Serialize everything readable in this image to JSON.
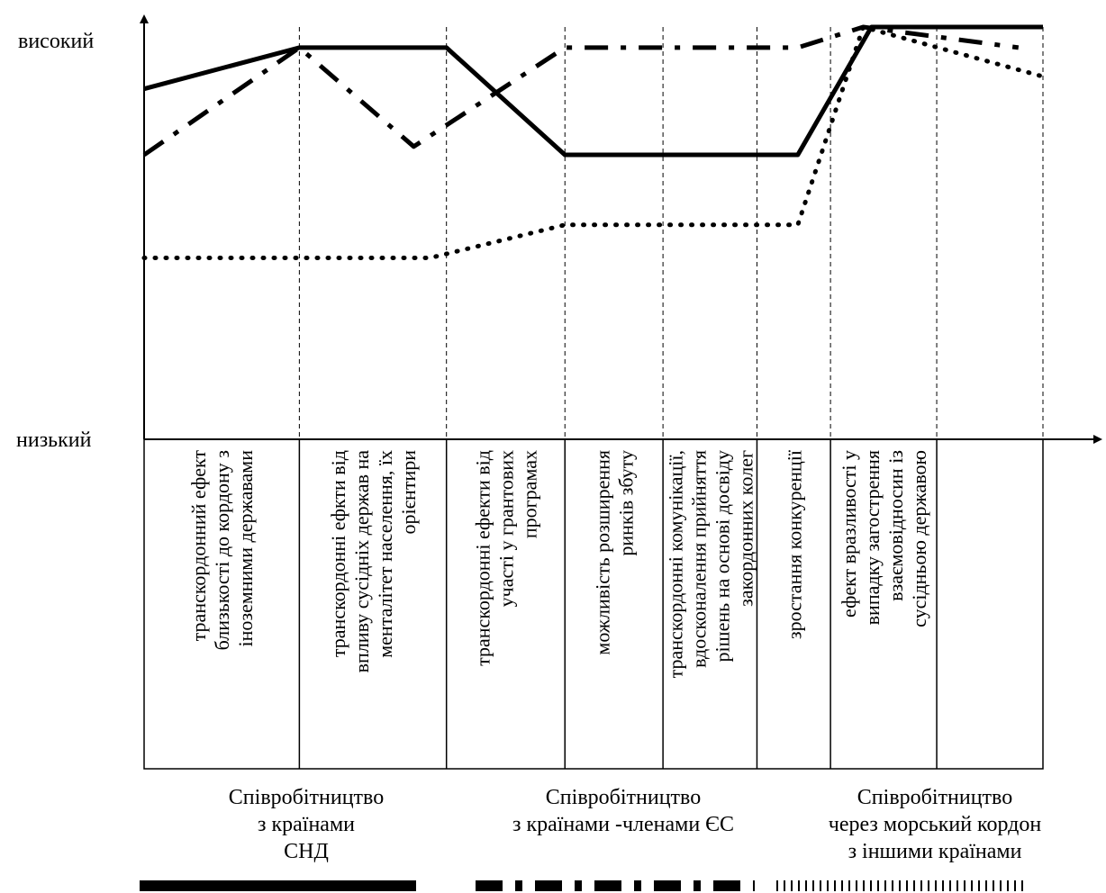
{
  "chart_data": {
    "type": "line",
    "title": "",
    "xlabel": "",
    "ylabel": "",
    "y_labels": {
      "high": "високий",
      "low": "низький"
    },
    "ylim": [
      0,
      10
    ],
    "grid": "vertical-dashed",
    "categories": [
      [
        "транскордонний ефект",
        "близькості до кордону з",
        "іноземними державами"
      ],
      [
        "транскордонні ефкти від",
        "впливу сусідніх держав на",
        "менталітет населення, їх",
        "орієнтири"
      ],
      [
        "транскордонні ефекти від",
        "участі у грантових",
        "програмах"
      ],
      [
        "можливість розширення",
        "ринків збуту"
      ],
      [
        "транскордонні комунікації,",
        "вдосконалення прийняття",
        "рішень на основі досвіду",
        "закордонних колег"
      ],
      [
        "зростання конкуренції"
      ],
      [
        "ефект вразливості у",
        "випадку загострення",
        "взаємовідносин із",
        "сусідньою державою"
      ]
    ],
    "groups": [
      [
        "Співробітництво",
        "з країнами",
        "СНД"
      ],
      [
        "Співробітництво",
        "з країнами -членами ЄС"
      ],
      [
        "Співробітництво",
        "через морський кордон",
        "з іншими країнами"
      ]
    ],
    "boundaries": [
      0,
      1.9,
      3.7,
      5.15,
      6.35,
      7.5,
      8.4,
      9.7
    ],
    "series": [
      {
        "style": "solid",
        "points": [
          [
            0,
            8.5
          ],
          [
            1.9,
            9.5
          ],
          [
            3.7,
            9.5
          ],
          [
            5.15,
            6.9
          ],
          [
            8.0,
            6.9
          ],
          [
            8.9,
            10.0
          ],
          [
            11.0,
            10.0
          ]
        ]
      },
      {
        "style": "dashdot",
        "points": [
          [
            0,
            6.9
          ],
          [
            1.9,
            9.5
          ],
          [
            3.3,
            7.1
          ],
          [
            5.15,
            9.5
          ],
          [
            8.0,
            9.5
          ],
          [
            8.8,
            10.0
          ],
          [
            10.7,
            9.5
          ]
        ]
      },
      {
        "style": "dotted",
        "points": [
          [
            0,
            4.4
          ],
          [
            1.9,
            4.4
          ],
          [
            3.5,
            4.4
          ],
          [
            5.15,
            5.2
          ],
          [
            8.0,
            5.2
          ],
          [
            8.8,
            10.0
          ],
          [
            11.0,
            8.8
          ]
        ]
      }
    ]
  },
  "legend_styles": [
    "solid",
    "dashdot",
    "dotted"
  ]
}
